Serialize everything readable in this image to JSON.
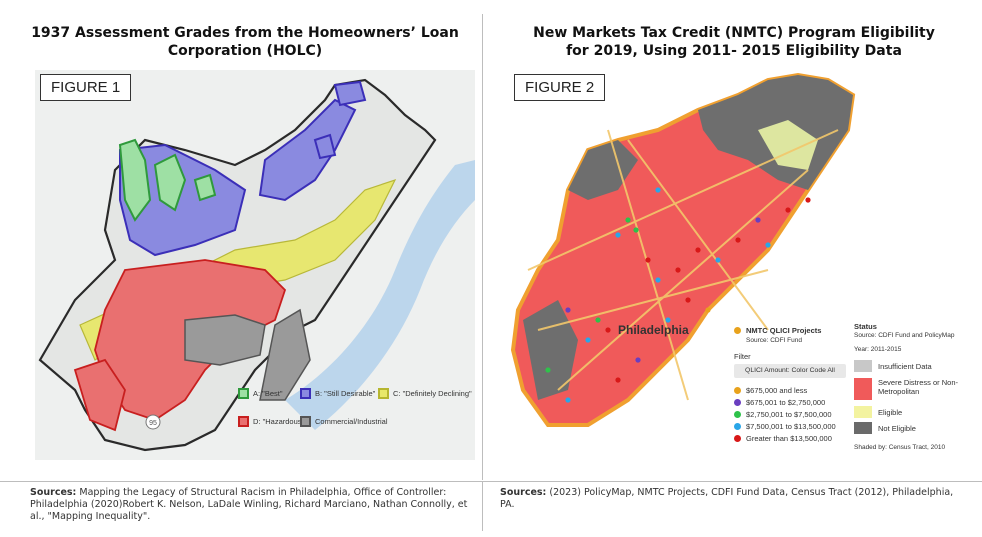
{
  "figure1": {
    "title": "1937 Assessment Grades from the Homeowners’ Loan Corporation (HOLC)",
    "label": "FIGURE 1",
    "legend": [
      {
        "label": "A: \"Best\"",
        "color": "#5cc46a"
      },
      {
        "label": "B: \"Still Desirable\"",
        "color": "#6a6ad8"
      },
      {
        "label": "C: \"Definitely Declining\"",
        "color": "#d8d84a"
      },
      {
        "label": "D: \"Hazardous\"",
        "color": "#e05050"
      },
      {
        "label": "Commercial/Industrial",
        "color": "#8a8a8a"
      }
    ],
    "route_label": "95"
  },
  "figure2": {
    "title": "New Markets Tax Credit (NMTC) Program Eligibility for 2019, Using 2011- 2015 Eligibility Data",
    "label": "FIGURE 2",
    "city_label": "Philadelphia",
    "projects_legend": {
      "title": "NMTC QLICI Projects",
      "source": "Source: CDFI Fund",
      "filter_label": "Filter",
      "filter_value": "QLICI Amount: Color Code All",
      "items": [
        {
          "label": "$675,000 and less",
          "color": "#e8a21c"
        },
        {
          "label": "$675,001 to $2,750,000",
          "color": "#6a3ec0"
        },
        {
          "label": "$2,750,001 to $7,500,000",
          "color": "#2ec24a"
        },
        {
          "label": "$7,500,001 to $13,500,000",
          "color": "#2aa6e8"
        },
        {
          "label": "Greater than $13,500,000",
          "color": "#d81818"
        }
      ]
    },
    "status_legend": {
      "title": "Status",
      "source": "Source: CDFI Fund and PolicyMap",
      "year": "Year: 2011-2015",
      "items": [
        {
          "label": "Insufficient Data",
          "color": "#c8c8c8"
        },
        {
          "label": "Severe Distress or Non-Metropolitan",
          "color": "#f05a5a"
        },
        {
          "label": "Eligible",
          "color": "#f3f3a0"
        },
        {
          "label": "Not Eligible",
          "color": "#6a6a6a"
        }
      ],
      "shaded_by": "Shaded by: Census Tract, 2010"
    }
  },
  "sources": {
    "left_label": "Sources:",
    "left_text": "Mapping the Legacy of Structural Racism in Philadelphia, Office of Controller: Philadelphia (2020)Robert K. Nelson, LaDale Winling, Richard Marciano, Nathan Connolly, et al., \"Mapping Inequality\".",
    "right_label": "Sources:",
    "right_text": "(2023) PolicyMap, NMTC Projects, CDFI Fund Data, Census Tract (2012), Philadelphia, PA."
  }
}
